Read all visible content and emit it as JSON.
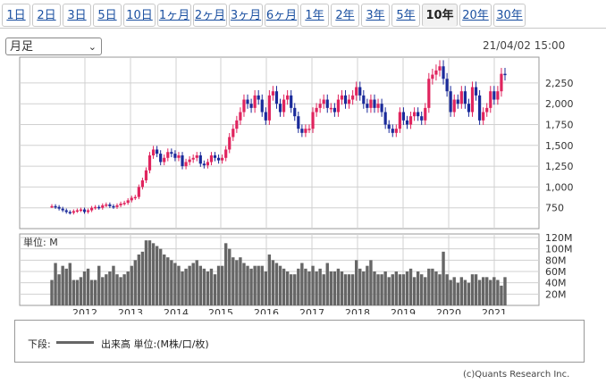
{
  "tabs": [
    {
      "label": "1日",
      "active": false
    },
    {
      "label": "2日",
      "active": false
    },
    {
      "label": "3日",
      "active": false
    },
    {
      "label": "5日",
      "active": false
    },
    {
      "label": "10日",
      "active": false
    },
    {
      "label": "1ヶ月",
      "active": false
    },
    {
      "label": "2ヶ月",
      "active": false
    },
    {
      "label": "3ヶ月",
      "active": false
    },
    {
      "label": "6ヶ月",
      "active": false
    },
    {
      "label": "1年",
      "active": false
    },
    {
      "label": "2年",
      "active": false
    },
    {
      "label": "3年",
      "active": false
    },
    {
      "label": "5年",
      "active": false
    },
    {
      "label": "10年",
      "active": true
    },
    {
      "label": "20年",
      "active": false
    },
    {
      "label": "30年",
      "active": false
    }
  ],
  "period_select": {
    "value": "月足",
    "icon": "chevron-down-icon"
  },
  "timestamp": "21/04/02 15:00",
  "legend": {
    "prefix": "下段:",
    "text": "出来高 単位:(M株/口/枚)"
  },
  "copyright": "(c)Quants Research Inc.",
  "colors": {
    "up": "#e0245e",
    "down": "#1a2a9a",
    "volume": "#666666",
    "grid": "#d0d0d0"
  },
  "chart_data": [
    {
      "type": "candlestick",
      "title": "",
      "x_labels": [
        "2012",
        "2013",
        "2014",
        "2015",
        "2016",
        "2017",
        "2018",
        "2019",
        "2020",
        "2021"
      ],
      "y_ticks": [
        750,
        1000,
        1250,
        1500,
        1750,
        2000,
        2250
      ],
      "ylim": [
        500,
        2560
      ],
      "grid": true,
      "series": [
        {
          "name": "",
          "close_monthly": [
            770,
            760,
            740,
            720,
            700,
            690,
            710,
            720,
            730,
            700,
            720,
            750,
            760,
            750,
            780,
            790,
            770,
            760,
            780,
            800,
            810,
            840,
            870,
            880,
            1000,
            1080,
            1200,
            1380,
            1450,
            1400,
            1300,
            1350,
            1420,
            1400,
            1350,
            1380,
            1250,
            1300,
            1330,
            1350,
            1380,
            1280,
            1260,
            1300,
            1380,
            1350,
            1320,
            1350,
            1450,
            1600,
            1700,
            1800,
            1900,
            2050,
            2000,
            1950,
            2100,
            2050,
            1900,
            1800,
            2100,
            2150,
            2000,
            1900,
            2050,
            2100,
            1950,
            1850,
            1700,
            1650,
            1700,
            1700,
            1900,
            1950,
            2000,
            2050,
            1950,
            1950,
            1900,
            2050,
            2100,
            2000,
            2050,
            2100,
            2200,
            2100,
            2000,
            1950,
            2050,
            1950,
            2000,
            1900,
            1750,
            1700,
            1650,
            1700,
            1900,
            1800,
            1750,
            1850,
            1900,
            1850,
            1800,
            1950,
            2300,
            2350,
            2400,
            2450,
            2300,
            2150,
            1900,
            2050,
            2000,
            2150,
            2000,
            1900,
            2200,
            2100,
            1800,
            1900,
            1950,
            2150,
            2050,
            2150,
            2360,
            2350
          ]
        }
      ]
    },
    {
      "type": "bar",
      "title": "",
      "ylabel": "単位: M",
      "y_ticks": [
        "20M",
        "40M",
        "60M",
        "80M",
        "100M",
        "120M"
      ],
      "ylim": [
        0,
        120
      ],
      "series": [
        {
          "name": "",
          "values": [
            45,
            75,
            55,
            70,
            65,
            75,
            45,
            45,
            50,
            60,
            65,
            45,
            45,
            70,
            50,
            55,
            60,
            70,
            55,
            50,
            55,
            60,
            70,
            80,
            90,
            95,
            115,
            115,
            110,
            105,
            100,
            90,
            85,
            80,
            75,
            70,
            60,
            65,
            70,
            75,
            80,
            70,
            65,
            60,
            65,
            55,
            70,
            70,
            110,
            100,
            85,
            80,
            85,
            75,
            70,
            65,
            70,
            70,
            70,
            60,
            90,
            80,
            75,
            70,
            65,
            60,
            55,
            55,
            65,
            75,
            65,
            60,
            70,
            60,
            65,
            55,
            75,
            60,
            60,
            65,
            60,
            55,
            55,
            55,
            80,
            65,
            60,
            70,
            80,
            60,
            55,
            55,
            60,
            50,
            55,
            60,
            55,
            55,
            60,
            65,
            50,
            60,
            55,
            50,
            65,
            65,
            60,
            55,
            95,
            55,
            45,
            50,
            40,
            50,
            45,
            40,
            55,
            55,
            45,
            50,
            50,
            45,
            50,
            45,
            35,
            50
          ]
        }
      ]
    }
  ]
}
